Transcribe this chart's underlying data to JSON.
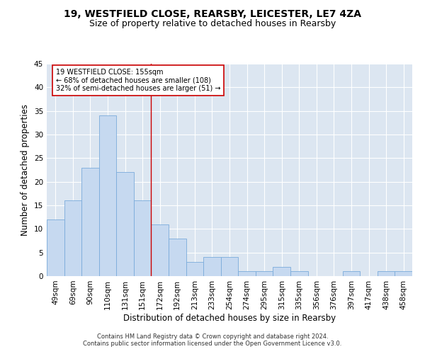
{
  "title1": "19, WESTFIELD CLOSE, REARSBY, LEICESTER, LE7 4ZA",
  "title2": "Size of property relative to detached houses in Rearsby",
  "xlabel": "Distribution of detached houses by size in Rearsby",
  "ylabel": "Number of detached properties",
  "footer1": "Contains HM Land Registry data © Crown copyright and database right 2024.",
  "footer2": "Contains public sector information licensed under the Open Government Licence v3.0.",
  "bar_color": "#c6d9f0",
  "bar_edge_color": "#7aabdb",
  "categories": [
    "49sqm",
    "69sqm",
    "90sqm",
    "110sqm",
    "131sqm",
    "151sqm",
    "172sqm",
    "192sqm",
    "213sqm",
    "233sqm",
    "254sqm",
    "274sqm",
    "295sqm",
    "315sqm",
    "335sqm",
    "356sqm",
    "376sqm",
    "397sqm",
    "417sqm",
    "438sqm",
    "458sqm"
  ],
  "values": [
    12,
    16,
    23,
    34,
    22,
    16,
    11,
    8,
    3,
    4,
    4,
    1,
    1,
    2,
    1,
    0,
    0,
    1,
    0,
    1,
    1
  ],
  "vline_x": 5.5,
  "vline_color": "#cc0000",
  "annotation_text": "19 WESTFIELD CLOSE: 155sqm\n← 68% of detached houses are smaller (108)\n32% of semi-detached houses are larger (51) →",
  "annotation_box_color": "#ffffff",
  "annotation_box_edge": "#cc0000",
  "ylim": [
    0,
    45
  ],
  "yticks": [
    0,
    5,
    10,
    15,
    20,
    25,
    30,
    35,
    40,
    45
  ],
  "plot_bg_color": "#dce6f1",
  "title_fontsize": 10,
  "subtitle_fontsize": 9,
  "tick_fontsize": 7.5,
  "label_fontsize": 8.5,
  "annotation_fontsize": 7,
  "footer_fontsize": 6
}
